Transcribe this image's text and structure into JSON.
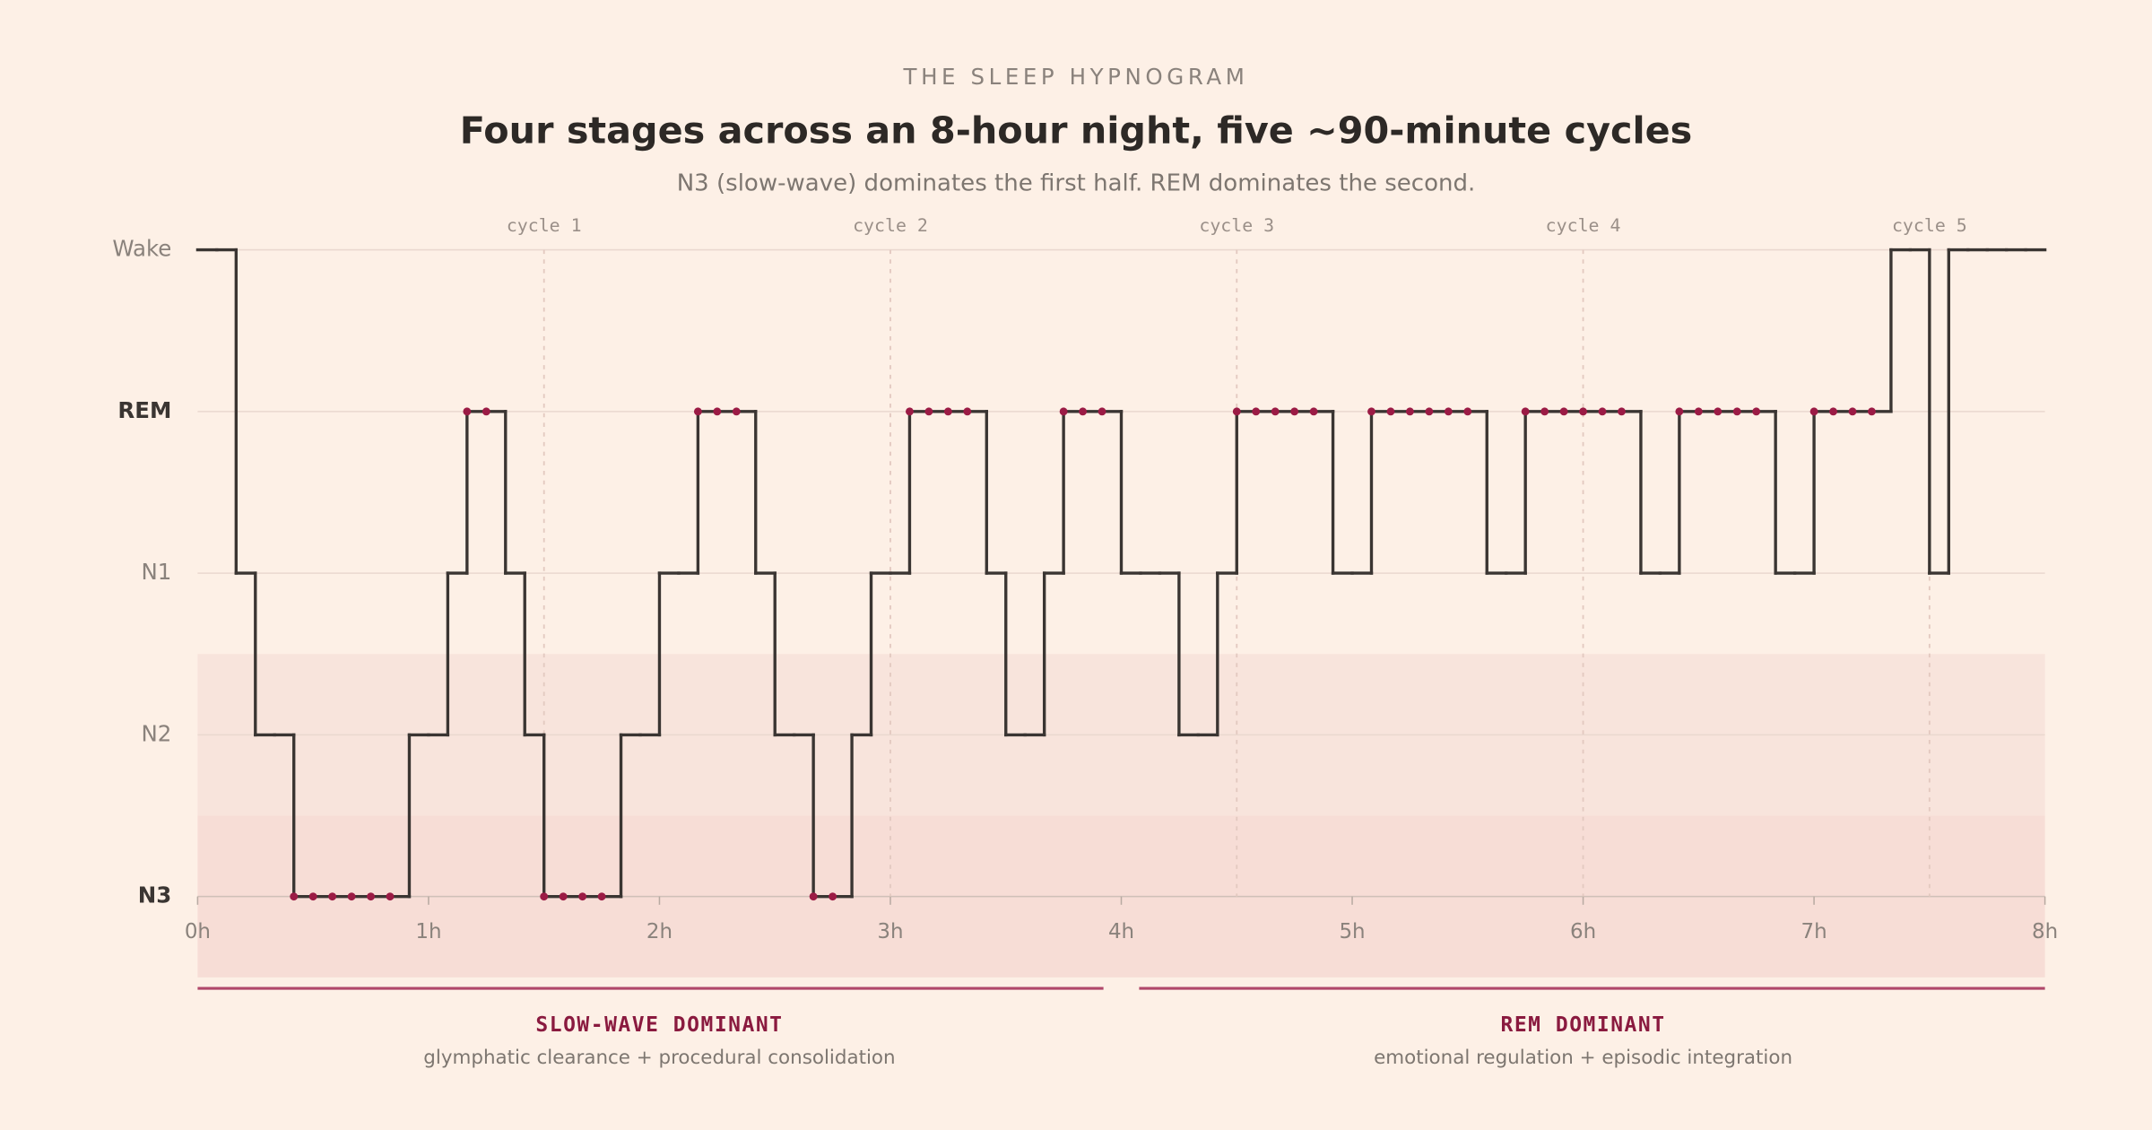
{
  "chart_data": {
    "type": "step",
    "kicker": "THE SLEEP HYPNOGRAM",
    "title": "Four stages across an 8-hour night, five ~90-minute cycles",
    "subtitle": "N3 (slow-wave) dominates the first half. REM dominates the second.",
    "values": [
      4,
      4,
      2,
      1,
      1,
      0,
      0,
      0,
      0,
      0,
      0,
      1,
      1,
      2,
      3,
      3,
      2,
      1,
      0,
      0,
      0,
      0,
      1,
      1,
      2,
      2,
      3,
      3,
      3,
      2,
      1,
      1,
      0,
      0,
      1,
      2,
      2,
      3,
      3,
      3,
      3,
      2,
      1,
      1,
      2,
      3,
      3,
      3,
      2,
      2,
      2,
      1,
      1,
      2,
      3,
      3,
      3,
      3,
      3,
      2,
      2,
      3,
      3,
      3,
      3,
      3,
      3,
      2,
      2,
      3,
      3,
      3,
      3,
      3,
      3,
      2,
      2,
      3,
      3,
      3,
      3,
      3,
      2,
      2,
      3,
      3,
      3,
      3,
      4,
      4,
      2,
      4,
      4,
      4,
      4,
      4
    ],
    "xlim": [
      0,
      8
    ],
    "xticks": [
      {
        "value": 0,
        "label": "0h"
      },
      {
        "value": 1,
        "label": "1h"
      },
      {
        "value": 2,
        "label": "2h"
      },
      {
        "value": 3,
        "label": "3h"
      },
      {
        "value": 4,
        "label": "4h"
      },
      {
        "value": 5,
        "label": "5h"
      },
      {
        "value": 6,
        "label": "6h"
      },
      {
        "value": 7,
        "label": "7h"
      },
      {
        "value": 8,
        "label": "8h"
      }
    ],
    "ylim": [
      -0.5,
      4
    ],
    "yticks": [
      {
        "value": 0,
        "label": "N3"
      },
      {
        "value": 1,
        "label": "N2"
      },
      {
        "value": 2,
        "label": "N1"
      },
      {
        "value": 3,
        "label": "REM"
      },
      {
        "value": 4,
        "label": "Wake"
      }
    ],
    "highlight_stages": [
      0,
      3
    ],
    "line_color": "#3a3532",
    "dot_color": "#9b1b45",
    "grid": true,
    "shaded_bands": [
      {
        "range": [
          -0.5,
          0.5
        ],
        "color": "#f7ddd6"
      },
      {
        "range": [
          0.5,
          1.5
        ],
        "color": "#f8e4dc"
      }
    ],
    "cycles": [
      {
        "x": 1.5,
        "label": "cycle 1"
      },
      {
        "x": 3,
        "label": "cycle 2"
      },
      {
        "x": 4.5,
        "label": "cycle 3"
      },
      {
        "x": 6,
        "label": "cycle 4"
      },
      {
        "x": 7.5,
        "label": "cycle 5"
      }
    ],
    "phases": [
      {
        "label": "SLOW-WAVE DOMINANT",
        "note": "glymphatic clearance + procedural consolidation",
        "range": [
          0,
          4
        ]
      },
      {
        "label": "REM DOMINANT",
        "note": "emotional regulation + episodic integration",
        "range": [
          4,
          8
        ]
      }
    ]
  }
}
